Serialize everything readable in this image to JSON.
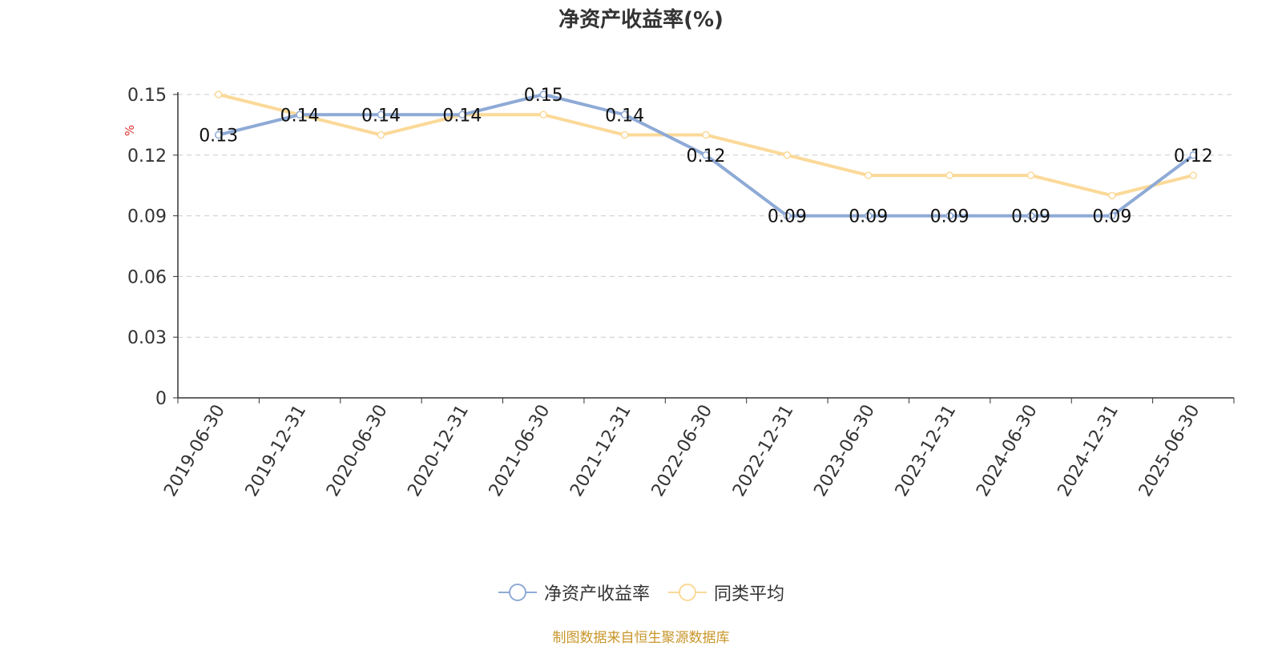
{
  "chart_data": {
    "type": "line",
    "title": "净资产收益率(%)",
    "ylabel": "%",
    "xlabel": "",
    "ylim": [
      0,
      0.15
    ],
    "yticks": [
      "0",
      "0.03",
      "0.06",
      "0.09",
      "0.12",
      "0.15"
    ],
    "ytick_values": [
      0,
      0.03,
      0.06,
      0.09,
      0.12,
      0.15
    ],
    "grid": true,
    "legend_position": "bottom-center",
    "categories": [
      "2019-06-30",
      "2019-12-31",
      "2020-06-30",
      "2020-12-31",
      "2021-06-30",
      "2021-12-31",
      "2022-06-30",
      "2022-12-31",
      "2023-06-30",
      "2023-12-31",
      "2024-06-30",
      "2024-12-31",
      "2025-06-30"
    ],
    "series": [
      {
        "name": "净资产收益率",
        "color": "#8eaad6",
        "values": [
          0.13,
          0.14,
          0.14,
          0.14,
          0.15,
          0.14,
          0.12,
          0.09,
          0.09,
          0.09,
          0.09,
          0.09,
          0.12
        ],
        "labels": [
          "0.13",
          "0.14",
          "0.14",
          "0.14",
          "0.15",
          "0.14",
          "0.12",
          "0.09",
          "0.09",
          "0.09",
          "0.09",
          "0.09",
          "0.12"
        ]
      },
      {
        "name": "同类平均",
        "color": "#fbd998",
        "values": [
          0.15,
          0.14,
          0.13,
          0.14,
          0.14,
          0.13,
          0.13,
          0.12,
          0.11,
          0.11,
          0.11,
          0.1,
          0.11
        ]
      }
    ]
  },
  "source": "制图数据来自恒生聚源数据库",
  "colors": {
    "title": "#333333",
    "axis": "#333333",
    "grid": "#cccccc",
    "ylabel": "#e03030",
    "source": "#c8962a"
  }
}
